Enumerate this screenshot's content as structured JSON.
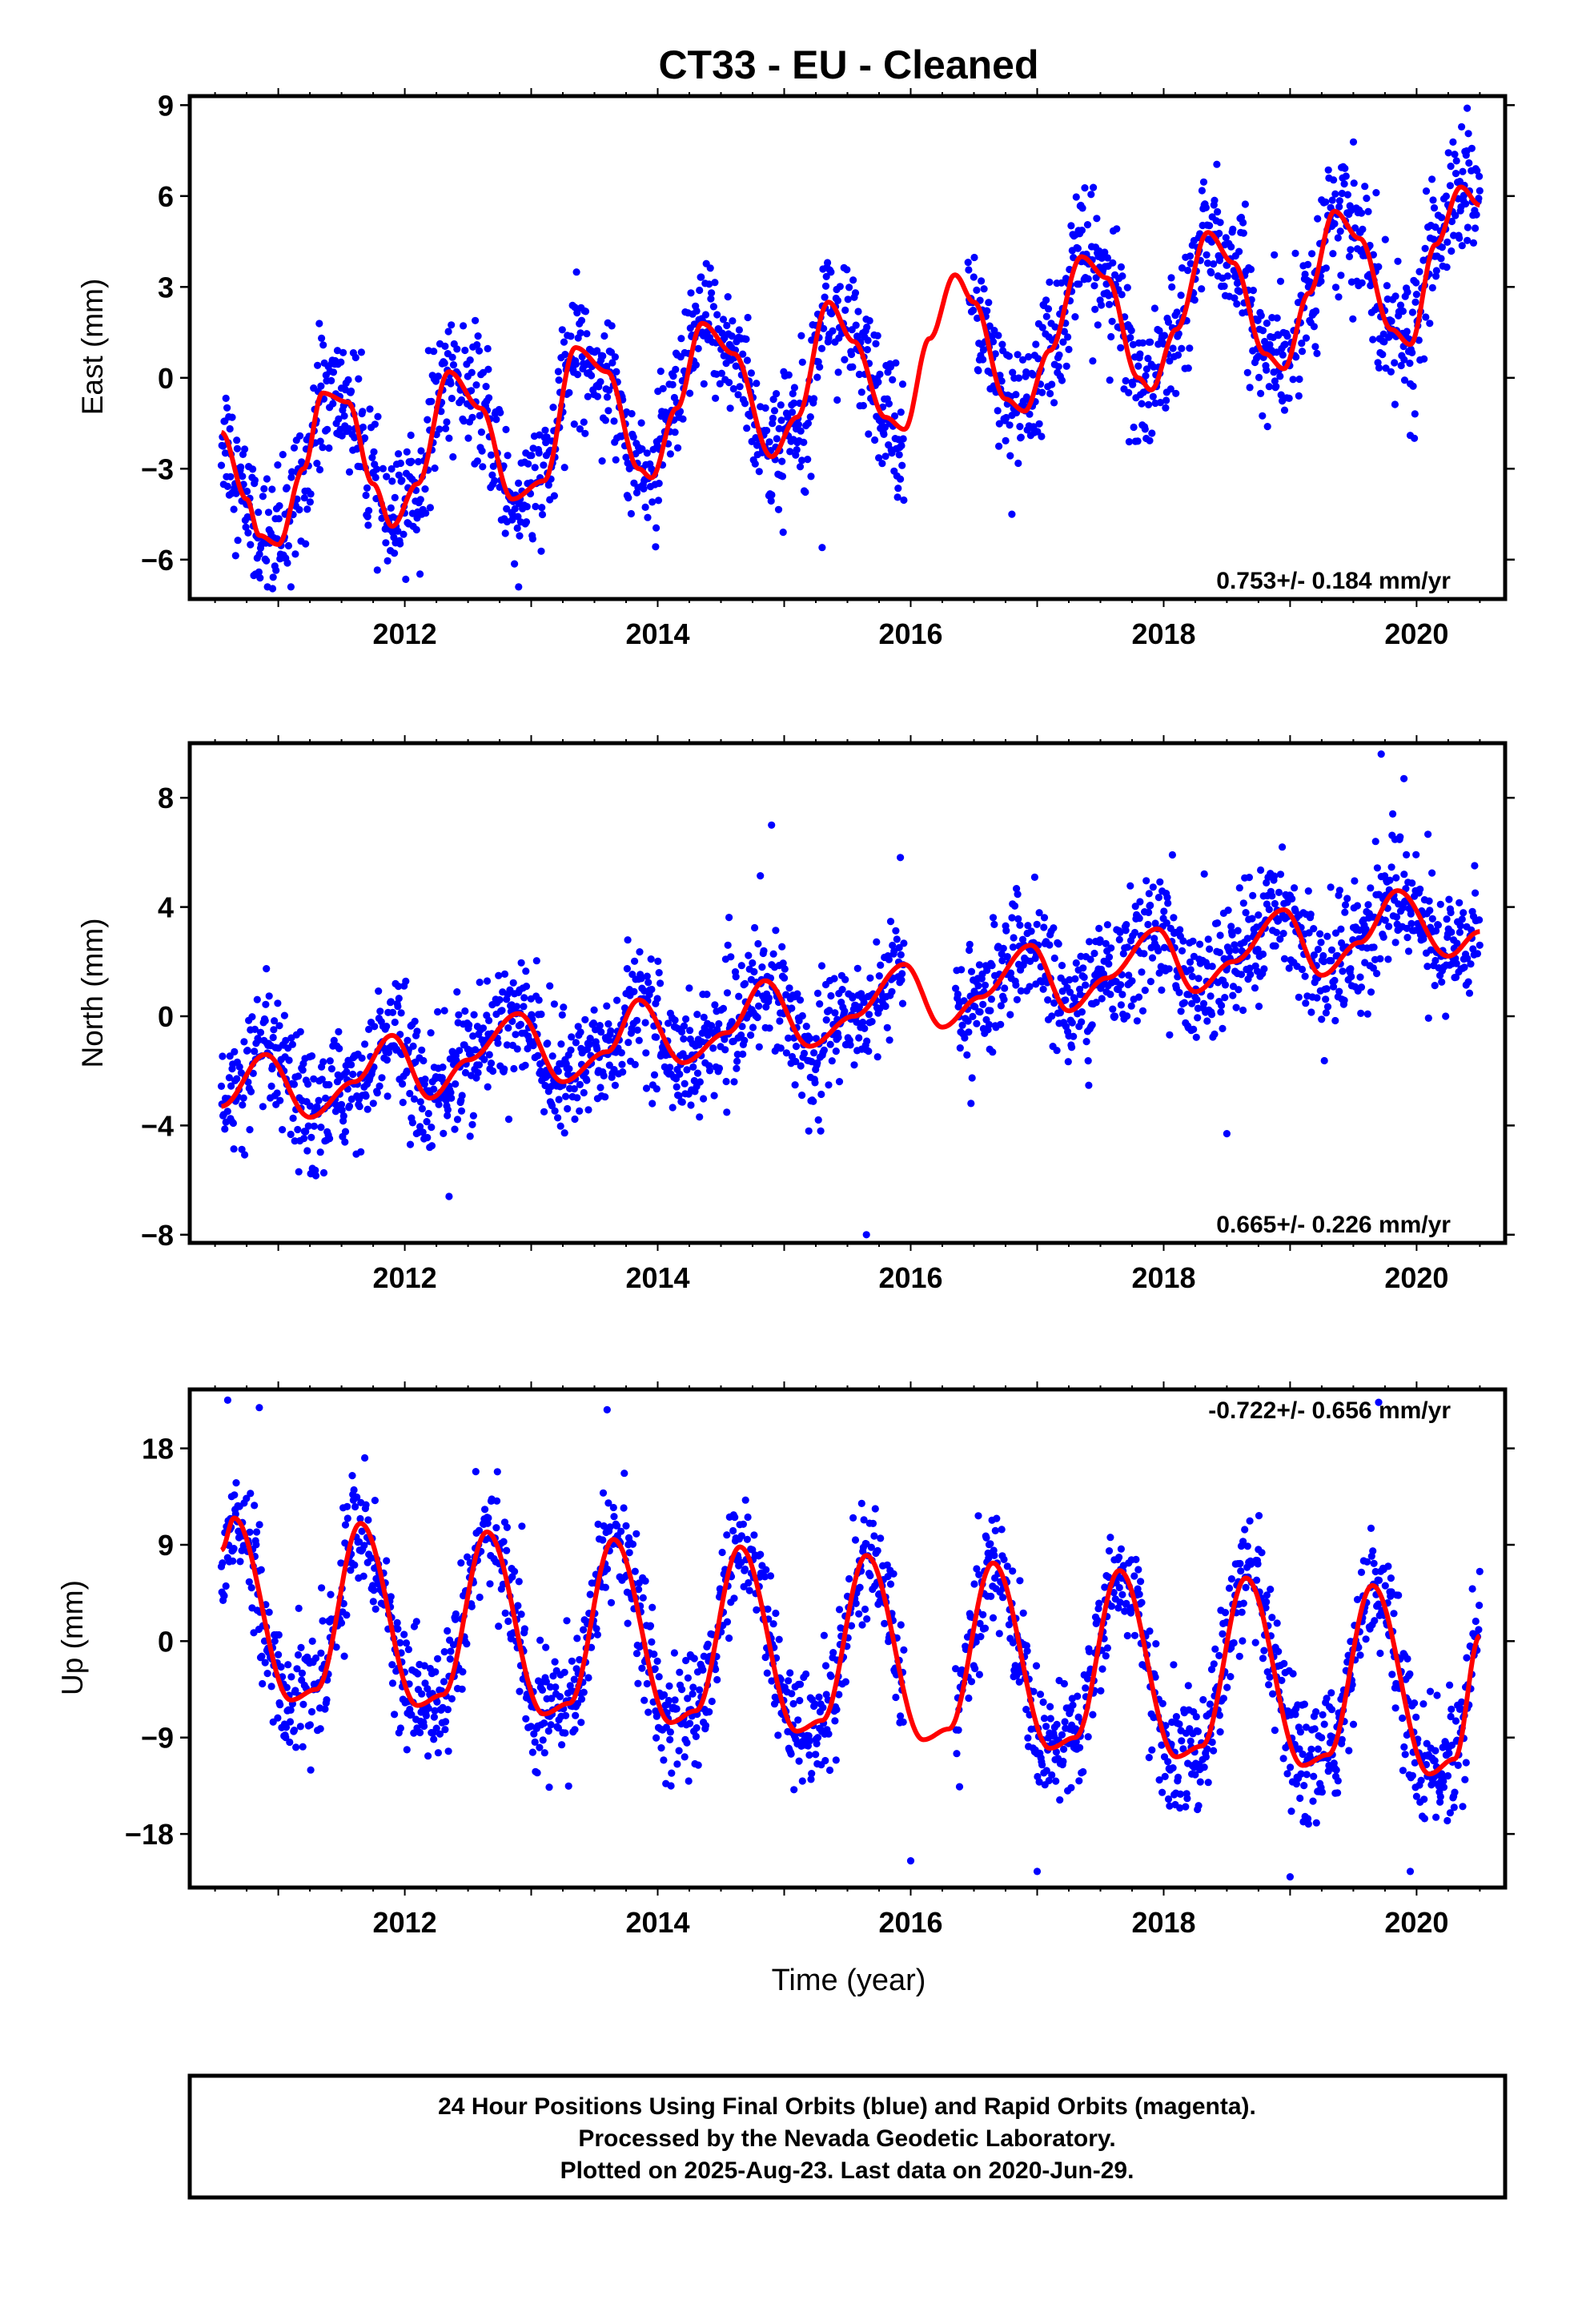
{
  "title": "CT33  - EU - Cleaned",
  "x_axis_label": "Time (year)",
  "footer": {
    "line1": "24 Hour Positions Using Final Orbits (blue) and Rapid Orbits (magenta).",
    "line2": "Processed by the Nevada Geodetic Laboratory.",
    "line3": "Plotted on 2025-Aug-23. Last data on 2020-Jun-29."
  },
  "colors": {
    "points": "#0000ff",
    "fit": "#ff0000",
    "frame": "#000000"
  },
  "chart_data": [
    {
      "type": "scatter",
      "panel": "east",
      "ylabel": "East (mm)",
      "rate_label": "0.753+/- 0.184 mm/yr",
      "rate_position": "bottom-right",
      "xlim": [
        2010.3,
        2020.7
      ],
      "ylim": [
        -7.3,
        9.3
      ],
      "xticks": [
        2012,
        2014,
        2016,
        2018,
        2020
      ],
      "yticks": [
        -6,
        -3,
        0,
        3,
        6,
        9
      ],
      "ytick_labels": [
        "−6",
        "−3",
        "0",
        "3",
        "6",
        "9"
      ],
      "fit": {
        "name": "fit",
        "x": [
          2010.55,
          2010.75,
          2010.85,
          2011.0,
          2011.2,
          2011.35,
          2011.55,
          2011.75,
          2011.9,
          2012.1,
          2012.35,
          2012.6,
          2012.85,
          2013.1,
          2013.35,
          2013.6,
          2013.85,
          2013.95,
          2014.15,
          2014.35,
          2014.6,
          2014.9,
          2015.1,
          2015.35,
          2015.55,
          2015.8,
          2015.95,
          2016.15,
          2016.35,
          2016.5,
          2016.75,
          2016.9,
          2017.1,
          2017.35,
          2017.55,
          2017.8,
          2017.9,
          2018.1,
          2018.35,
          2018.55,
          2018.8,
          2018.95,
          2019.15,
          2019.35,
          2019.55,
          2019.8,
          2019.95,
          2020.15,
          2020.35,
          2020.5
        ],
        "y": [
          -1.8,
          -4.0,
          -5.2,
          -5.5,
          -3.0,
          -0.5,
          -0.8,
          -3.5,
          -4.9,
          -3.5,
          0.2,
          -1.0,
          -4.0,
          -3.4,
          1.0,
          0.2,
          -3.0,
          -3.3,
          -1.0,
          1.8,
          0.8,
          -2.6,
          -1.3,
          2.5,
          1.2,
          -1.3,
          -1.7,
          1.3,
          3.4,
          2.5,
          -0.7,
          -1.1,
          0.9,
          4.0,
          3.3,
          0.0,
          -0.4,
          1.6,
          4.8,
          3.8,
          0.8,
          0.3,
          2.8,
          5.5,
          4.6,
          1.6,
          1.1,
          4.4,
          6.3,
          5.7
        ]
      },
      "gap": [
        2015.95,
        2016.45
      ],
      "noise": 1.05,
      "outliers": [
        [
          2011.1,
          -6.9
        ],
        [
          2012.9,
          -6.9
        ],
        [
          2015.3,
          -5.6
        ],
        [
          2019.95,
          -1.9
        ],
        [
          2016.8,
          -4.5
        ],
        [
          2020.4,
          8.9
        ]
      ]
    },
    {
      "type": "scatter",
      "panel": "north",
      "ylabel": "North (mm)",
      "rate_label": "0.665+/- 0.226 mm/yr",
      "rate_position": "bottom-right",
      "xlim": [
        2010.3,
        2020.7
      ],
      "ylim": [
        -8.3,
        10.0
      ],
      "xticks": [
        2012,
        2014,
        2016,
        2018,
        2020
      ],
      "yticks": [
        -8,
        -4,
        0,
        4,
        8
      ],
      "ytick_labels": [
        "−8",
        "−4",
        "0",
        "4",
        "8"
      ],
      "fit": {
        "name": "fit",
        "x": [
          2010.55,
          2010.9,
          2011.25,
          2011.6,
          2011.9,
          2012.2,
          2012.5,
          2012.9,
          2013.25,
          2013.6,
          2013.85,
          2014.2,
          2014.55,
          2014.85,
          2015.2,
          2015.55,
          2015.95,
          2016.25,
          2016.55,
          2016.95,
          2017.25,
          2017.55,
          2017.95,
          2018.25,
          2018.55,
          2018.95,
          2019.25,
          2019.55,
          2019.85,
          2020.25,
          2020.5
        ],
        "y": [
          -3.3,
          -1.4,
          -3.7,
          -2.4,
          -0.7,
          -3.0,
          -1.6,
          0.1,
          -2.4,
          -1.3,
          0.6,
          -1.7,
          -0.6,
          1.3,
          -1.1,
          0.0,
          1.9,
          -0.4,
          0.7,
          2.6,
          0.2,
          1.4,
          3.2,
          0.9,
          2.0,
          3.9,
          1.5,
          2.7,
          4.6,
          2.2,
          3.1
        ]
      },
      "gap": [
        2015.95,
        2016.35
      ],
      "noise": 1.1,
      "outliers": [
        [
          2015.65,
          -8.0
        ],
        [
          2018.5,
          -4.3
        ],
        [
          2019.72,
          9.6
        ],
        [
          2019.9,
          8.7
        ],
        [
          2014.9,
          7.0
        ],
        [
          2012.35,
          -6.6
        ]
      ]
    },
    {
      "type": "scatter",
      "panel": "up",
      "ylabel": "Up (mm)",
      "rate_label": "-0.722+/- 0.656 mm/yr",
      "rate_position": "top-right",
      "xlim": [
        2010.3,
        2020.7
      ],
      "ylim": [
        -23.0,
        23.5
      ],
      "xticks": [
        2012,
        2014,
        2016,
        2018,
        2020
      ],
      "yticks": [
        -18,
        -9,
        0,
        9,
        18
      ],
      "ytick_labels": [
        "−18",
        "−9",
        "0",
        "9",
        "18"
      ],
      "fit": {
        "name": "fit",
        "x": [
          2010.55,
          2010.65,
          2011.1,
          2011.3,
          2011.65,
          2012.1,
          2012.3,
          2012.65,
          2013.1,
          2013.3,
          2013.65,
          2014.1,
          2014.3,
          2014.65,
          2015.1,
          2015.3,
          2015.65,
          2016.1,
          2016.3,
          2016.65,
          2017.1,
          2017.3,
          2017.65,
          2018.1,
          2018.3,
          2018.65,
          2019.1,
          2019.3,
          2019.65,
          2020.1,
          2020.3,
          2020.5
        ],
        "y": [
          8.5,
          11.5,
          -5.5,
          -4.5,
          11.0,
          -6.0,
          -5.0,
          10.2,
          -6.8,
          -5.8,
          9.5,
          -7.6,
          -6.5,
          8.8,
          -8.4,
          -7.4,
          8.0,
          -9.2,
          -8.2,
          7.3,
          -10.0,
          -9.0,
          6.6,
          -10.8,
          -9.8,
          5.9,
          -11.6,
          -10.6,
          5.2,
          -12.4,
          -11.0,
          0.5
        ]
      },
      "gap": [
        2015.95,
        2016.35
      ],
      "noise": 2.8,
      "outliers": [
        [
          2010.6,
          22.5
        ],
        [
          2010.85,
          21.8
        ],
        [
          2013.6,
          21.6
        ],
        [
          2016.0,
          -20.5
        ],
        [
          2017.0,
          -21.5
        ],
        [
          2019.0,
          -22.0
        ],
        [
          2019.95,
          -21.5
        ],
        [
          2019.7,
          22.3
        ]
      ]
    }
  ]
}
